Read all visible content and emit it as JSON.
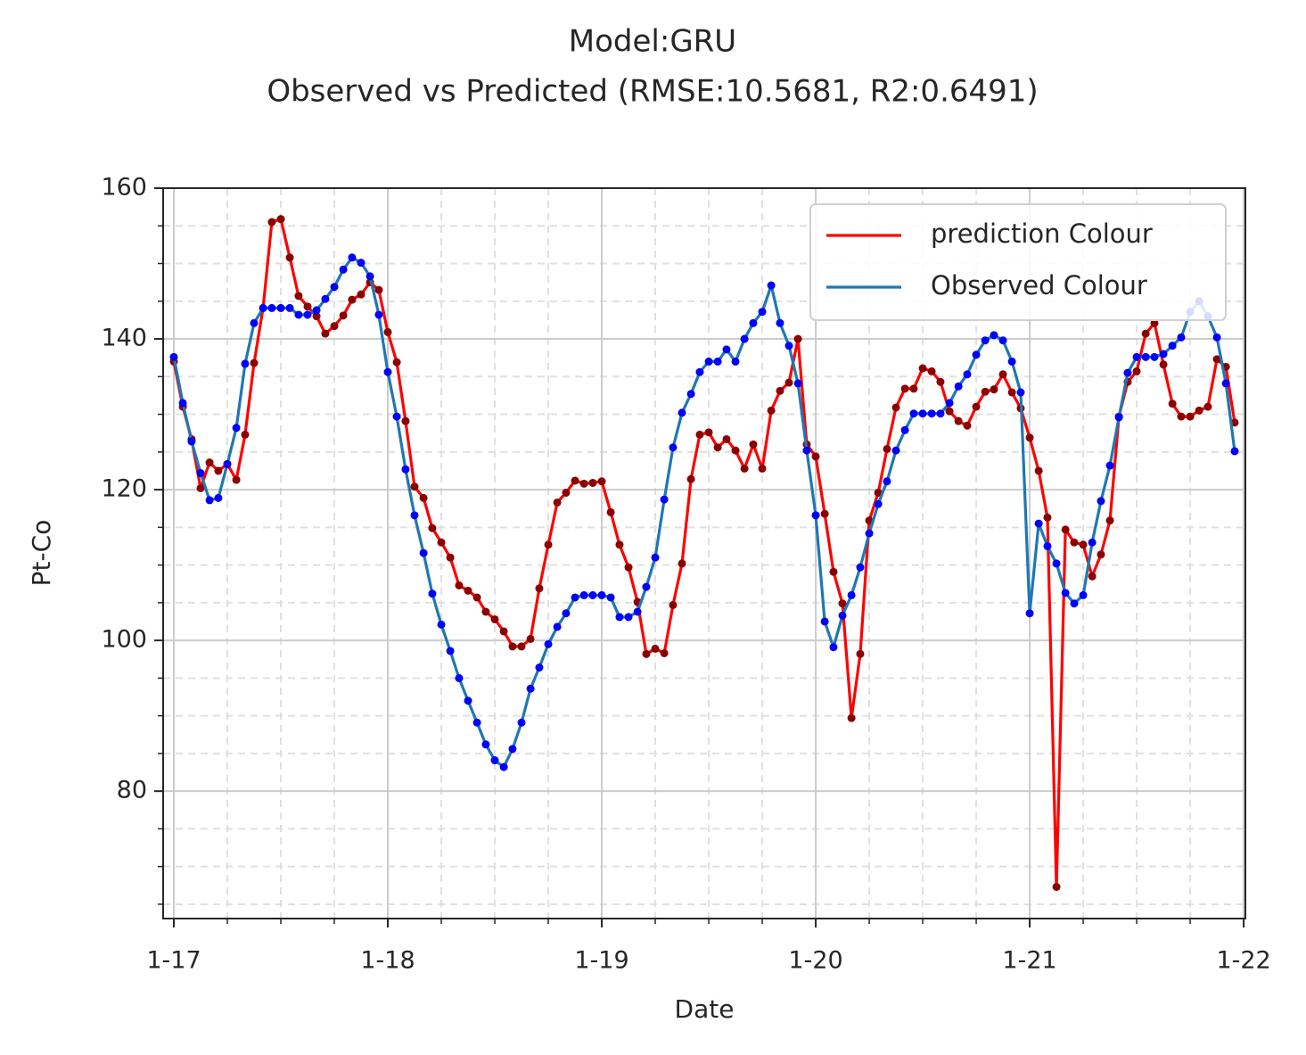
{
  "chart_data": {
    "type": "line",
    "title": "Model:GRU",
    "subtitle": "Observed vs Predicted (RMSE:10.5681, R2:0.6491)",
    "x_label": "Date",
    "y_label": "Pt-Co",
    "x": [
      2017,
      2017.042,
      2017.083,
      2017.125,
      2017.167,
      2017.208,
      2017.25,
      2017.292,
      2017.333,
      2017.375,
      2017.417,
      2017.458,
      2017.5,
      2017.542,
      2017.583,
      2017.625,
      2017.667,
      2017.708,
      2017.75,
      2017.792,
      2017.833,
      2017.875,
      2017.917,
      2017.958,
      2018,
      2018.042,
      2018.083,
      2018.125,
      2018.167,
      2018.208,
      2018.25,
      2018.292,
      2018.333,
      2018.375,
      2018.417,
      2018.458,
      2018.5,
      2018.542,
      2018.583,
      2018.625,
      2018.667,
      2018.708,
      2018.75,
      2018.792,
      2018.833,
      2018.875,
      2018.917,
      2018.958,
      2019,
      2019.042,
      2019.083,
      2019.125,
      2019.167,
      2019.208,
      2019.25,
      2019.292,
      2019.333,
      2019.375,
      2019.417,
      2019.458,
      2019.5,
      2019.542,
      2019.583,
      2019.625,
      2019.667,
      2019.708,
      2019.75,
      2019.792,
      2019.833,
      2019.875,
      2019.917,
      2019.958,
      2020,
      2020.042,
      2020.083,
      2020.125,
      2020.167,
      2020.208,
      2020.25,
      2020.292,
      2020.333,
      2020.375,
      2020.417,
      2020.458,
      2020.5,
      2020.542,
      2020.583,
      2020.625,
      2020.667,
      2020.708,
      2020.75,
      2020.792,
      2020.833,
      2020.875,
      2020.917,
      2020.958,
      2021,
      2021.042,
      2021.083,
      2021.125,
      2021.167,
      2021.208,
      2021.25,
      2021.292,
      2021.333,
      2021.375,
      2021.417,
      2021.458,
      2021.5,
      2021.542,
      2021.583,
      2021.625,
      2021.667,
      2021.708,
      2021.75,
      2021.792,
      2021.833,
      2021.875,
      2021.917,
      2021.958
    ],
    "series": [
      {
        "name": "prediction Colour",
        "color": "#ff0000",
        "marker_color": "#8b0000",
        "values": [
          137.0,
          131.0,
          126.7,
          120.2,
          123.6,
          122.5,
          123.4,
          121.3,
          127.3,
          136.8,
          144.1,
          155.5,
          155.9,
          150.8,
          145.7,
          144.3,
          143.0,
          140.7,
          141.7,
          143.1,
          145.2,
          145.9,
          147.5,
          146.5,
          140.9,
          136.9,
          129.1,
          120.4,
          118.9,
          114.9,
          113.0,
          111.0,
          107.3,
          106.6,
          105.7,
          103.8,
          102.8,
          101.2,
          99.2,
          99.2,
          100.2,
          106.9,
          112.7,
          118.3,
          119.6,
          121.2,
          120.8,
          120.9,
          121.1,
          117.0,
          112.7,
          109.7,
          105.1,
          98.2,
          98.9,
          98.3,
          104.7,
          110.2,
          121.4,
          127.3,
          127.6,
          125.6,
          126.7,
          125.2,
          122.8,
          126.0,
          122.8,
          130.5,
          133.1,
          134.2,
          140.0,
          126.0,
          124.4,
          116.8,
          109.1,
          104.9,
          89.7,
          98.2,
          115.9,
          119.6,
          125.4,
          130.9,
          133.4,
          133.4,
          136.1,
          135.7,
          134.3,
          130.4,
          129.1,
          128.5,
          131.0,
          133.0,
          133.3,
          135.3,
          132.9,
          130.8,
          126.9,
          122.5,
          116.3,
          67.3,
          114.7,
          113.0,
          112.7,
          108.5,
          111.4,
          115.9,
          129.7,
          134.3,
          135.7,
          140.7,
          142.1,
          136.6,
          131.4,
          129.7,
          129.7,
          130.5,
          131.0,
          137.3,
          136.3,
          128.9
        ]
      },
      {
        "name": "Observed Colour",
        "color": "#1f77b4",
        "marker_color": "#0000ff",
        "values": [
          137.6,
          131.5,
          126.4,
          122.2,
          118.6,
          118.9,
          123.4,
          128.2,
          136.7,
          142.1,
          144.1,
          144.1,
          144.1,
          144.1,
          143.2,
          143.2,
          143.8,
          145.3,
          146.9,
          149.2,
          150.8,
          150.1,
          148.3,
          143.2,
          135.6,
          129.7,
          122.7,
          116.6,
          111.6,
          106.2,
          102.1,
          98.6,
          95.0,
          92.0,
          89.1,
          86.2,
          84.1,
          83.2,
          85.6,
          89.1,
          93.6,
          96.4,
          99.5,
          101.8,
          103.6,
          105.7,
          106.0,
          106.0,
          106.0,
          105.7,
          103.1,
          103.1,
          103.8,
          107.1,
          111.0,
          118.7,
          125.6,
          130.2,
          132.7,
          135.6,
          137.0,
          137.0,
          138.6,
          137.0,
          140.0,
          142.1,
          143.6,
          147.1,
          142.1,
          139.1,
          134.1,
          125.2,
          116.6,
          102.5,
          99.1,
          103.3,
          106.0,
          109.7,
          114.2,
          118.1,
          121.1,
          125.2,
          127.9,
          130.1,
          130.1,
          130.1,
          130.1,
          131.5,
          133.7,
          135.3,
          137.9,
          139.8,
          140.5,
          139.8,
          137.0,
          132.9,
          103.6,
          115.5,
          112.5,
          110.2,
          106.3,
          104.9,
          106.0,
          113.0,
          118.5,
          123.2,
          129.6,
          135.5,
          137.6,
          137.6,
          137.6,
          138.0,
          139.1,
          140.2,
          143.6,
          145.0,
          143.0,
          140.2,
          134.1,
          125.1
        ]
      }
    ],
    "xlim": [
      2016.95,
      2022.008
    ],
    "xticks": [
      {
        "value": 2017,
        "label": "1-17"
      },
      {
        "value": 2018,
        "label": "1-18"
      },
      {
        "value": 2019,
        "label": "1-19"
      },
      {
        "value": 2020,
        "label": "1-20"
      },
      {
        "value": 2021,
        "label": "1-21"
      },
      {
        "value": 2022,
        "label": "1-22"
      }
    ],
    "xminorticks": [
      2017.25,
      2017.5,
      2017.75,
      2018.25,
      2018.5,
      2018.75,
      2019.25,
      2019.5,
      2019.75,
      2020.25,
      2020.5,
      2020.75,
      2021.25,
      2021.5,
      2021.75
    ],
    "ylim": [
      63.1,
      160
    ],
    "yticks": [
      80,
      100,
      120,
      140,
      160
    ],
    "yminorticks": [
      65,
      70,
      75,
      85,
      90,
      95,
      105,
      110,
      115,
      125,
      130,
      135,
      145,
      150,
      155
    ],
    "grid": true,
    "legend": "upper right"
  }
}
